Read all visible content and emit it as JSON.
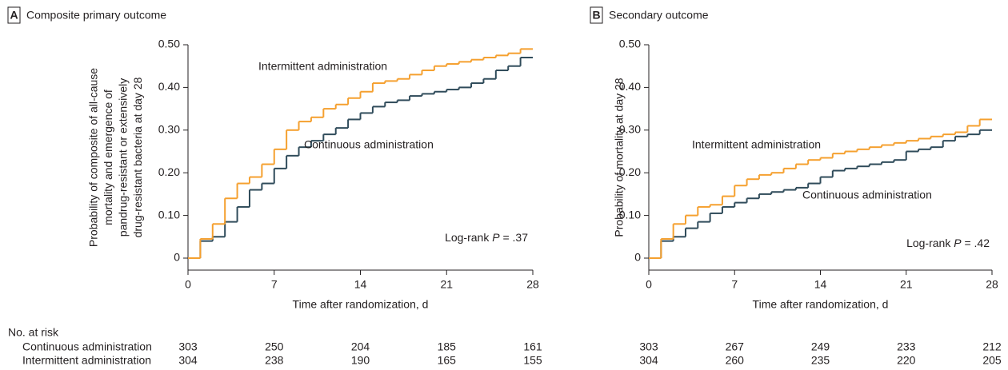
{
  "at_risk_title": "No. at risk",
  "chart_data": [
    {
      "type": "line",
      "step": "post",
      "panel": "A",
      "title": "Composite primary outcome",
      "ylabel": [
        "Probability of composite of all-cause",
        "mortality and emergence of",
        "pandrug-resistant or extensively",
        "drug-resistant bacteria at day 28"
      ],
      "xlabel": "Time after randomization, d",
      "annotation": {
        "text": "Log-rank",
        "stat": "P",
        "value_text": "= .37"
      },
      "x": [
        0,
        1,
        2,
        3,
        4,
        5,
        6,
        7,
        8,
        9,
        10,
        11,
        12,
        13,
        14,
        15,
        16,
        17,
        18,
        19,
        20,
        21,
        22,
        23,
        24,
        25,
        26,
        27,
        28
      ],
      "series": [
        {
          "name": "Continuous administration",
          "color": "#2f4b5a",
          "values": [
            0,
            0.04,
            0.05,
            0.085,
            0.12,
            0.16,
            0.175,
            0.21,
            0.24,
            0.26,
            0.275,
            0.29,
            0.305,
            0.325,
            0.34,
            0.355,
            0.365,
            0.37,
            0.38,
            0.385,
            0.39,
            0.395,
            0.4,
            0.41,
            0.42,
            0.44,
            0.45,
            0.47,
            0.47
          ],
          "at_risk": [
            303,
            250,
            204,
            185,
            161
          ]
        },
        {
          "name": "Intermittent administration",
          "color": "#f5a02f",
          "values": [
            0,
            0.045,
            0.08,
            0.14,
            0.175,
            0.19,
            0.22,
            0.255,
            0.3,
            0.32,
            0.33,
            0.35,
            0.36,
            0.375,
            0.39,
            0.41,
            0.415,
            0.42,
            0.43,
            0.44,
            0.45,
            0.455,
            0.46,
            0.465,
            0.47,
            0.475,
            0.48,
            0.49,
            0.49
          ],
          "at_risk": [
            304,
            238,
            190,
            165,
            155
          ]
        }
      ],
      "xlim": [
        0,
        28
      ],
      "xticks": [
        0,
        7,
        14,
        21,
        28
      ],
      "ylim": [
        0,
        0.5
      ],
      "yticks": [
        0,
        {
          "value": 0.1,
          "label": "0.10"
        },
        {
          "value": 0.2,
          "label": "0.20"
        },
        {
          "value": 0.3,
          "label": "0.30"
        },
        {
          "value": 0.4,
          "label": "0.40"
        },
        {
          "value": 0.5,
          "label": "0.50"
        }
      ]
    },
    {
      "type": "line",
      "step": "post",
      "panel": "B",
      "title": "Secondary outcome",
      "ylabel": [
        "Probability of mortality at day 28"
      ],
      "xlabel": "Time after randomization, d",
      "annotation": {
        "text": "Log-rank",
        "stat": "P",
        "value_text": "= .42"
      },
      "x": [
        0,
        1,
        2,
        3,
        4,
        5,
        6,
        7,
        8,
        9,
        10,
        11,
        12,
        13,
        14,
        15,
        16,
        17,
        18,
        19,
        20,
        21,
        22,
        23,
        24,
        25,
        26,
        27,
        28
      ],
      "series": [
        {
          "name": "Continuous administration",
          "color": "#2f4b5a",
          "values": [
            0,
            0.04,
            0.05,
            0.07,
            0.085,
            0.105,
            0.12,
            0.13,
            0.14,
            0.15,
            0.155,
            0.16,
            0.165,
            0.175,
            0.19,
            0.205,
            0.21,
            0.215,
            0.22,
            0.225,
            0.23,
            0.25,
            0.255,
            0.26,
            0.275,
            0.285,
            0.29,
            0.3,
            0.3
          ],
          "at_risk": [
            303,
            267,
            249,
            233,
            212
          ]
        },
        {
          "name": "Intermittent administration",
          "color": "#f5a02f",
          "values": [
            0,
            0.045,
            0.08,
            0.1,
            0.12,
            0.125,
            0.145,
            0.17,
            0.185,
            0.195,
            0.2,
            0.21,
            0.22,
            0.23,
            0.235,
            0.245,
            0.25,
            0.255,
            0.26,
            0.265,
            0.27,
            0.275,
            0.28,
            0.285,
            0.29,
            0.295,
            0.31,
            0.325,
            0.325
          ],
          "at_risk": [
            304,
            260,
            235,
            220,
            205
          ]
        }
      ],
      "xlim": [
        0,
        28
      ],
      "xticks": [
        0,
        7,
        14,
        21,
        28
      ],
      "ylim": [
        0,
        0.5
      ],
      "yticks": [
        0,
        {
          "value": 0.1,
          "label": "0.10"
        },
        {
          "value": 0.2,
          "label": "0.20"
        },
        {
          "value": 0.3,
          "label": "0.30"
        },
        {
          "value": 0.4,
          "label": "0.40"
        },
        {
          "value": 0.5,
          "label": "0.50"
        }
      ]
    }
  ]
}
